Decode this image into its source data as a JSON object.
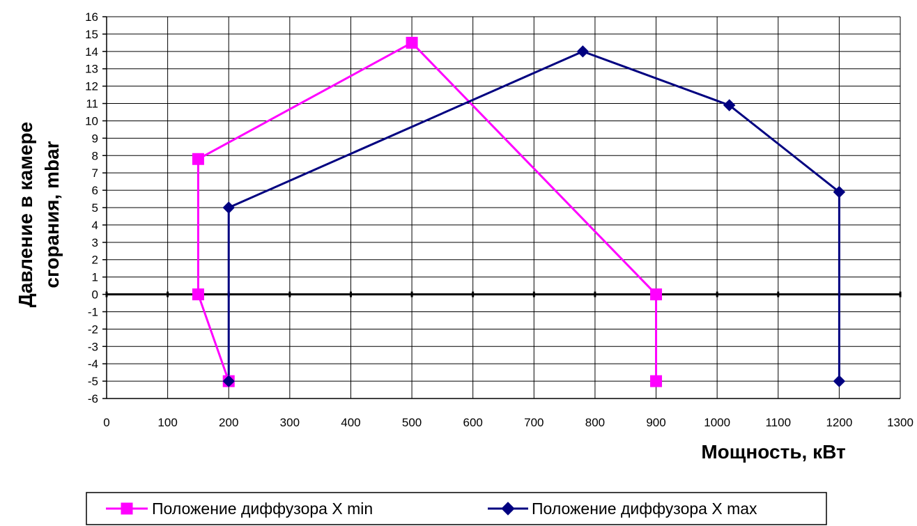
{
  "chart_data": {
    "type": "line",
    "xlabel": "Мощность, кВт",
    "ylabel_lines": [
      "Давление в камере",
      "сгорания, mbar"
    ],
    "xlim": [
      0,
      1300
    ],
    "ylim": [
      -6,
      16
    ],
    "x_ticks": [
      0,
      100,
      200,
      300,
      400,
      500,
      600,
      700,
      800,
      900,
      1000,
      1100,
      1200,
      1300
    ],
    "y_ticks": [
      -6,
      -5,
      -4,
      -3,
      -2,
      -1,
      0,
      1,
      2,
      3,
      4,
      5,
      6,
      7,
      8,
      9,
      10,
      11,
      12,
      13,
      14,
      15,
      16
    ],
    "grid": true,
    "legend_position": "bottom",
    "series": [
      {
        "name": "Положение диффузора X min",
        "color": "#ff00ff",
        "marker": "square",
        "x": [
          200,
          150,
          150,
          500,
          900,
          900
        ],
        "y": [
          -5,
          0,
          7.8,
          14.5,
          0,
          -5
        ]
      },
      {
        "name": "Положение диффузора X max",
        "color": "#000080",
        "marker": "diamond",
        "x": [
          200,
          200,
          780,
          1020,
          1200,
          1200
        ],
        "y": [
          -5,
          5,
          14,
          10.9,
          5.9,
          -5
        ]
      }
    ]
  }
}
